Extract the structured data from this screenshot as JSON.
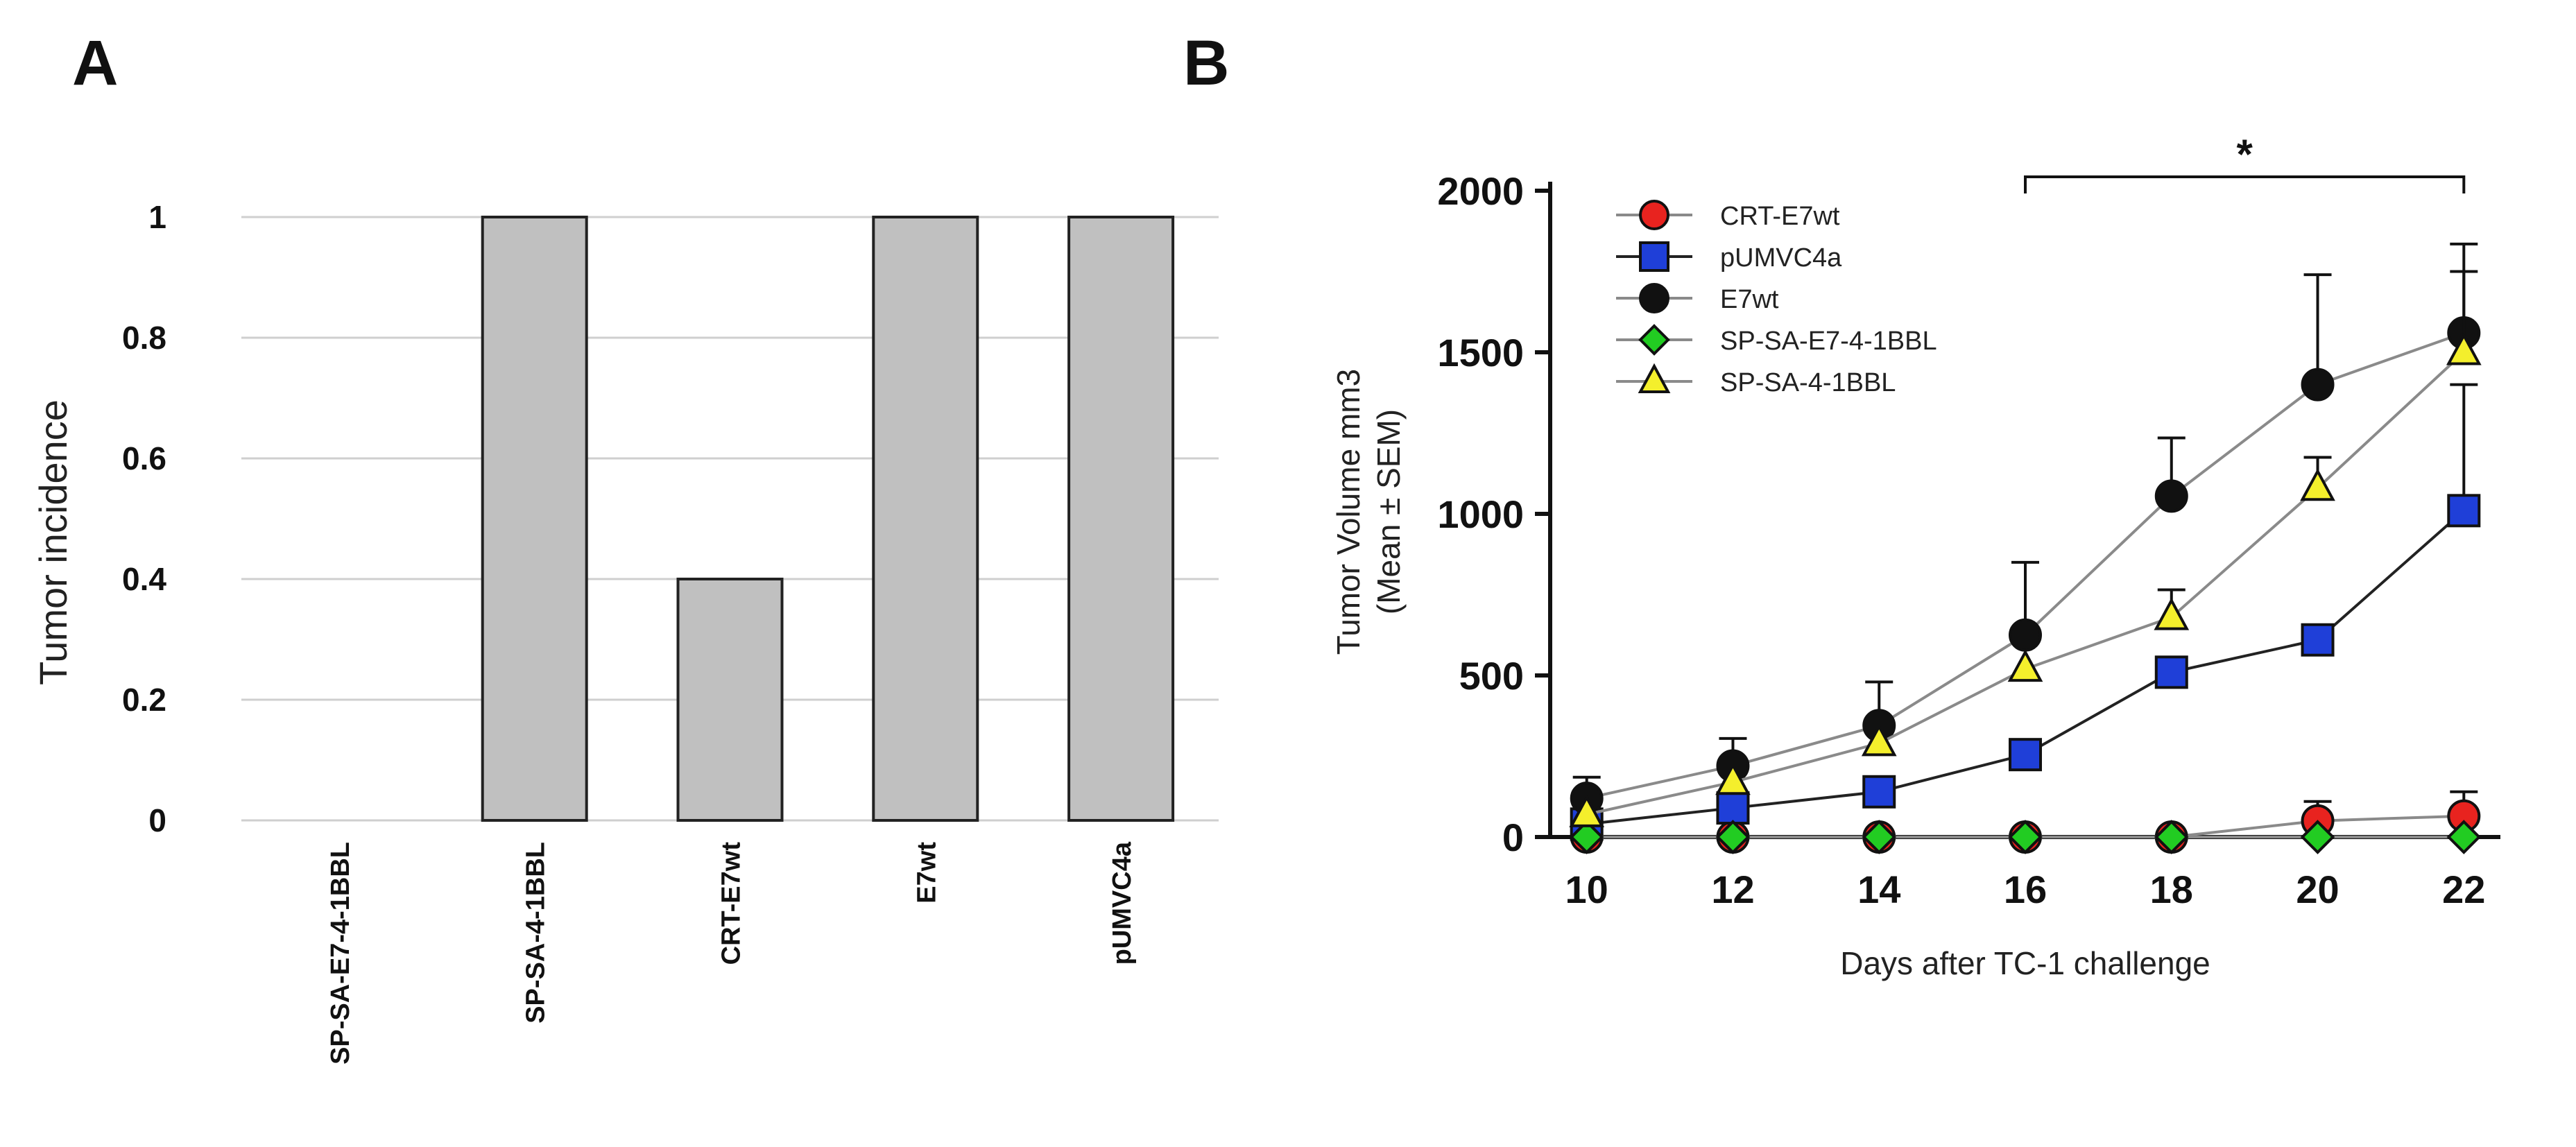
{
  "panels": {
    "a": "A",
    "b": "B"
  },
  "chart_data": [
    {
      "type": "bar",
      "panel": "A",
      "title": "",
      "xlabel": "",
      "ylabel": "Tumor  incidence",
      "ylim": [
        0,
        1
      ],
      "yticks": [
        "0",
        "0.2",
        "0.4",
        "0.6",
        "0.8",
        "1"
      ],
      "categories": [
        "SP-SA-E7-4-1BBL",
        "SP-SA-4-1BBL",
        "CRT-E7wt",
        "E7wt",
        "pUMVC4a"
      ],
      "values": [
        0,
        1,
        0.4,
        1,
        1
      ],
      "grid": true,
      "bar_color": "#c0c0c0"
    },
    {
      "type": "line",
      "panel": "B",
      "title": "",
      "xlabel": "Days after TC-1 challenge",
      "ylabel": "Tumor Volume mm3",
      "ylabel2": "(Mean ± SEM)",
      "x": [
        10,
        12,
        14,
        16,
        18,
        20,
        22
      ],
      "xlim": [
        9.5,
        22.5
      ],
      "ylim": [
        0,
        2000
      ],
      "yticks": [
        0,
        500,
        1000,
        1500,
        2000
      ],
      "grid": false,
      "legend_position": "top-left",
      "significance": {
        "label": "*",
        "from": 16,
        "to": 22
      },
      "series": [
        {
          "name": "CRT-E7wt",
          "marker": "circle",
          "color": "#e8231f",
          "values": [
            0,
            0,
            0,
            0,
            0,
            50,
            65
          ],
          "errors": [
            0,
            0,
            0,
            0,
            0,
            60,
            75
          ]
        },
        {
          "name": "pUMVC4a",
          "marker": "square",
          "color": "#1f3fd8",
          "values": [
            40,
            90,
            140,
            255,
            510,
            610,
            1010
          ],
          "errors": [
            0,
            0,
            0,
            0,
            0,
            0,
            390
          ]
        },
        {
          "name": "E7wt",
          "marker": "circle",
          "color": "#111111",
          "values": [
            120,
            220,
            345,
            625,
            1055,
            1400,
            1560
          ],
          "errors": [
            65,
            85,
            135,
            225,
            180,
            340,
            275
          ]
        },
        {
          "name": "SP-SA-E7-4-1BBL",
          "marker": "diamond",
          "color": "#22cc22",
          "values": [
            0,
            0,
            0,
            0,
            0,
            0,
            0
          ],
          "errors": [
            0,
            0,
            0,
            0,
            0,
            0,
            0
          ]
        },
        {
          "name": "SP-SA-4-1BBL",
          "marker": "triangle",
          "color": "#f4ef2c",
          "values": [
            70,
            170,
            290,
            520,
            680,
            1080,
            1500
          ],
          "errors": [
            0,
            0,
            0,
            0,
            85,
            95,
            250
          ]
        }
      ]
    }
  ]
}
